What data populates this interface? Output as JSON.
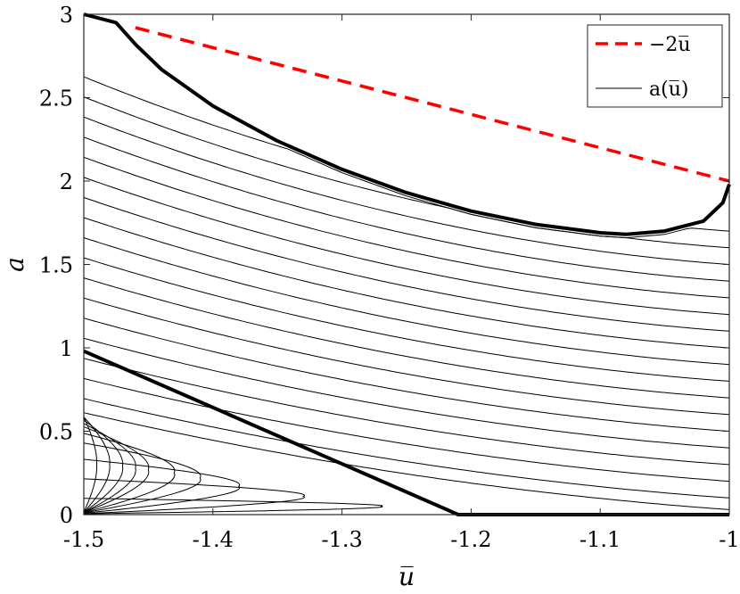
{
  "chart_data": {
    "type": "line",
    "xlabel": "u̅",
    "ylabel": "a",
    "xlim": [
      -1.5,
      -1.0
    ],
    "ylim": [
      0,
      3
    ],
    "xticks": [
      -1.5,
      -1.4,
      -1.3,
      -1.2,
      -1.1,
      -1.0
    ],
    "xtick_labels": [
      "-1.5",
      "-1.4",
      "-1.3",
      "-1.2",
      "-1.1",
      "-1"
    ],
    "yticks": [
      0,
      0.5,
      1,
      1.5,
      2,
      2.5,
      3
    ],
    "ytick_labels": [
      "0",
      "0.5",
      "1",
      "1.5",
      "2",
      "2.5",
      "3"
    ],
    "grid": false,
    "legend_position": "top-right",
    "legend": [
      {
        "label": "−2u̅",
        "style": "dashed",
        "color": "#ff0000"
      },
      {
        "label": "a(u̅)",
        "style": "solid",
        "color": "#000000"
      }
    ],
    "series": [
      {
        "name": "−2u̅",
        "color": "#ff0000",
        "dashed": true,
        "x": [
          -1.46,
          -1.0
        ],
        "y": [
          2.92,
          2.0
        ]
      },
      {
        "color": "#000000",
        "bold": true,
        "x": [
          -1.5,
          -1.475,
          -1.46,
          -1.44,
          -1.4,
          -1.35,
          -1.3,
          -1.25,
          -1.2,
          -1.15,
          -1.1,
          -1.08,
          -1.05,
          -1.02,
          -1.005,
          -1.0
        ],
        "y": [
          3.0,
          2.95,
          2.82,
          2.67,
          2.45,
          2.24,
          2.07,
          1.93,
          1.82,
          1.74,
          1.69,
          1.68,
          1.7,
          1.76,
          1.87,
          1.98
        ]
      },
      {
        "color": "#000000",
        "bold": true,
        "x": [
          -1.5,
          -1.21,
          -1.0
        ],
        "y": [
          0.98,
          0.0,
          0.0
        ]
      }
    ],
    "upper_family_intercepts_at_x_-1": [
      0.03,
      0.1,
      0.2,
      0.3,
      0.4,
      0.5,
      0.6,
      0.7,
      0.8,
      0.9,
      1.0,
      1.1,
      1.2,
      1.3,
      1.4,
      1.5,
      1.6,
      1.7
    ],
    "lower_family_tips_x": [
      -1.49,
      -1.48,
      -1.47,
      -1.46,
      -1.45,
      -1.43,
      -1.41,
      -1.38,
      -1.33,
      -1.27
    ],
    "lower_family_center_y": [
      0.3,
      0.3,
      0.29,
      0.28,
      0.27,
      0.25,
      0.22,
      0.17,
      0.11,
      0.05
    ]
  }
}
